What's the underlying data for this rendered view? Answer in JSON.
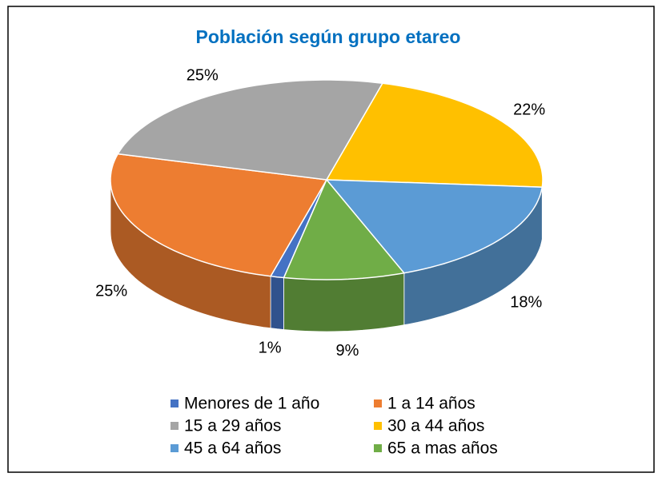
{
  "chart_data": {
    "type": "pie3d",
    "title": "Población según grupo etareo",
    "categories": [
      "Menores de 1 año",
      "1 a 14 años",
      "15 a 29 años",
      "30 a 44 años",
      "45 a 64 años",
      "65 a mas años"
    ],
    "values": [
      1,
      25,
      25,
      22,
      18,
      9
    ],
    "value_labels": [
      "1%",
      "25%",
      "25%",
      "22%",
      "18%",
      "9%"
    ],
    "colors": [
      "#4472c4",
      "#ed7d31",
      "#a5a5a5",
      "#ffc000",
      "#5b9bd5",
      "#70ad47"
    ],
    "legend": "bottom"
  }
}
